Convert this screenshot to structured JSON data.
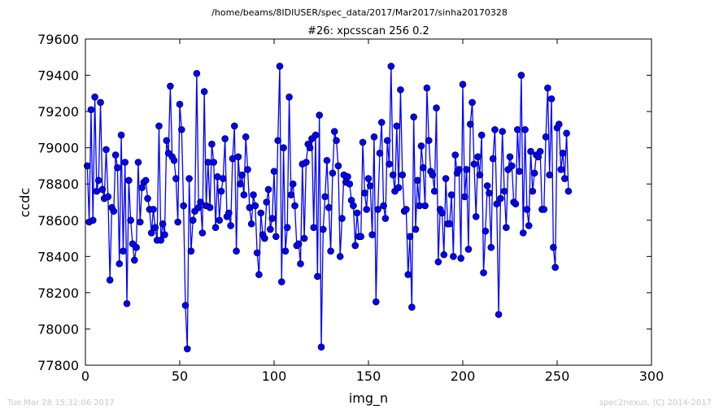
{
  "header": {
    "path": "/home/beams/8IDIUSER/spec_data/2017/Mar2017/sinha20170328"
  },
  "footer": {
    "timestamp": "Tue Mar 28 15:32:06 2017",
    "credit": "spec2nexus, (C) 2014-2017"
  },
  "colors": {
    "series": "#0000ff",
    "axes": "#000000",
    "footer_text": "#c8c8c8"
  },
  "chart_data": {
    "type": "line",
    "title": "#26: xpcsscan 256 0.2",
    "xlabel": "img_n",
    "ylabel": "ccdc",
    "xlim": [
      0,
      300
    ],
    "ylim": [
      77800,
      79600
    ],
    "xticks": [
      0,
      50,
      100,
      150,
      200,
      250,
      300
    ],
    "yticks": [
      77800,
      78000,
      78200,
      78400,
      78600,
      78800,
      79000,
      79200,
      79400,
      79600
    ],
    "grid": false,
    "marker": "circle",
    "series": [
      {
        "x_start": 1,
        "x_step": 1,
        "values": [
          78900,
          78590,
          79210,
          78600,
          79280,
          78760,
          78820,
          79250,
          78770,
          78720,
          78990,
          78730,
          78270,
          78670,
          78650,
          78960,
          78890,
          78360,
          79070,
          78430,
          78920,
          78140,
          78820,
          78600,
          78470,
          78380,
          78450,
          78920,
          78590,
          78780,
          78810,
          78820,
          78720,
          78660,
          78530,
          78660,
          78560,
          78490,
          79120,
          78490,
          78580,
          78520,
          79040,
          78970,
          79340,
          78950,
          78930,
          78830,
          78590,
          79240,
          79100,
          78680,
          78130,
          77890,
          78830,
          78430,
          78600,
          78650,
          79410,
          78670,
          78700,
          78530,
          79310,
          78680,
          78920,
          78670,
          79020,
          78920,
          78560,
          78840,
          78600,
          78760,
          78830,
          79050,
          78620,
          78640,
          78570,
          78940,
          79120,
          78430,
          78950,
          78800,
          78850,
          78740,
          79060,
          78880,
          78670,
          78580,
          78740,
          78680,
          78420,
          78300,
          78640,
          78520,
          78500,
          78700,
          78770,
          78550,
          78610,
          78870,
          78510,
          79040,
          79450,
          78260,
          79000,
          78430,
          78560,
          79280,
          78740,
          78800,
          78680,
          78460,
          78470,
          78360,
          78910,
          78500,
          78920,
          79020,
          79000,
          79050,
          78560,
          79070,
          78290,
          79180,
          77900,
          78550,
          78730,
          78930,
          78670,
          78430,
          78860,
          79090,
          79040,
          78900,
          78400,
          78610,
          78850,
          78810,
          78840,
          78800,
          78710,
          78680,
          78460,
          78640,
          78510,
          78510,
          79030,
          78750,
          78660,
          78830,
          78790,
          78520,
          79060,
          78150,
          78660,
          78970,
          79140,
          78680,
          78610,
          79040,
          78910,
          79450,
          78850,
          78760,
          79120,
          78780,
          79320,
          78850,
          78650,
          78660,
          78300,
          78510,
          78120,
          79170,
          78550,
          78820,
          78680,
          79010,
          78890,
          78680,
          79330,
          79040,
          78870,
          78850,
          78760,
          79220,
          78370,
          78660,
          78640,
          78410,
          78830,
          78580,
          78580,
          78740,
          78400,
          78960,
          78860,
          78880,
          78390,
          79350,
          78730,
          78880,
          78440,
          79130,
          79250,
          78910,
          78620,
          78950,
          78850,
          79070,
          78310,
          78540,
          78790,
          78750,
          78450,
          78940,
          79100,
          78690,
          78080,
          78720,
          79090,
          78760,
          78560,
          78880,
          78950,
          78900,
          78700,
          78690,
          79100,
          78870,
          79400,
          78530,
          79100,
          78660,
          78570,
          78980,
          78760,
          78860,
          78960,
          78950,
          78980,
          78660,
          78660,
          79060,
          79330,
          78850,
          79270,
          78450,
          78340,
          79110,
          79130,
          78880,
          78970,
          78830,
          79080,
          78760
        ]
      }
    ]
  }
}
